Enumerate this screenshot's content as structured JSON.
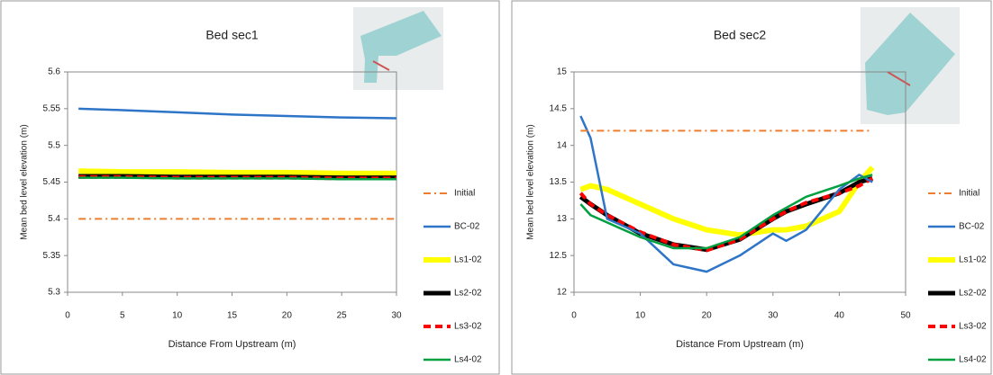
{
  "chart_data": [
    {
      "type": "line",
      "title": "Bed sec1",
      "x_label": "Distance From Upstream (m)",
      "y_label": "Mean bed level elevation (m)",
      "x": [
        1,
        5,
        10,
        15,
        20,
        25,
        30
      ],
      "xlim": [
        0,
        30
      ],
      "xticks": [
        0,
        5,
        10,
        15,
        20,
        25,
        30
      ],
      "ylim": [
        5.3,
        5.6
      ],
      "yticks": [
        5.3,
        5.35,
        5.4,
        5.45,
        5.5,
        5.55,
        5.6
      ],
      "series": [
        {
          "name": "Initial",
          "color": "#ed7d31",
          "style": "dashdot",
          "values": [
            5.4,
            5.4,
            5.4,
            5.4,
            5.4,
            5.4,
            5.4
          ]
        },
        {
          "name": "BC-02",
          "color": "#2e75c8",
          "values": [
            5.55,
            5.548,
            5.545,
            5.542,
            5.54,
            5.538,
            5.537
          ]
        },
        {
          "name": "Ls1-02",
          "color": "#ffff00",
          "values": [
            5.465,
            5.464,
            5.464,
            5.463,
            5.463,
            5.462,
            5.462
          ]
        },
        {
          "name": "Ls2-02",
          "color": "#000000",
          "values": [
            5.458,
            5.458,
            5.457,
            5.457,
            5.457,
            5.456,
            5.456
          ]
        },
        {
          "name": "Ls3-02",
          "color": "#ff0000",
          "style": "dashed",
          "values": [
            5.457,
            5.457,
            5.456,
            5.456,
            5.456,
            5.455,
            5.455
          ]
        },
        {
          "name": "Ls4-02",
          "color": "#00a040",
          "values": [
            5.456,
            5.456,
            5.455,
            5.455,
            5.455,
            5.454,
            5.454
          ]
        }
      ]
    },
    {
      "type": "line",
      "title": "Bed sec2",
      "x_label": "Distance From Upstream (m)",
      "y_label": "Mean bed level elevation (m)",
      "x": [
        1,
        2.5,
        5,
        10,
        15,
        20,
        25,
        30,
        32,
        35,
        40,
        43,
        45
      ],
      "xlim": [
        0,
        50
      ],
      "xticks": [
        0,
        10,
        20,
        30,
        40,
        50
      ],
      "ylim": [
        12,
        15
      ],
      "yticks": [
        12,
        12.5,
        13,
        13.5,
        14,
        14.5,
        15
      ],
      "series": [
        {
          "name": "Initial",
          "color": "#ed7d31",
          "style": "dashdot",
          "values": [
            14.2,
            14.2,
            14.2,
            14.2,
            14.2,
            14.2,
            14.2,
            14.2,
            14.2,
            14.2,
            14.2,
            14.2,
            14.2
          ]
        },
        {
          "name": "BC-02",
          "color": "#2e75c8",
          "values": [
            14.4,
            14.1,
            13.0,
            12.8,
            12.38,
            12.28,
            12.5,
            12.8,
            12.7,
            12.85,
            13.4,
            13.6,
            13.5
          ]
        },
        {
          "name": "Ls1-02",
          "color": "#ffff00",
          "values": [
            13.4,
            13.45,
            13.4,
            13.2,
            13.0,
            12.85,
            12.78,
            12.85,
            12.85,
            12.9,
            13.1,
            13.5,
            13.7
          ]
        },
        {
          "name": "Ls2-02",
          "color": "#000000",
          "values": [
            13.3,
            13.2,
            13.05,
            12.8,
            12.65,
            12.58,
            12.72,
            13.0,
            13.1,
            13.2,
            13.35,
            13.5,
            13.55
          ]
        },
        {
          "name": "Ls3-02",
          "color": "#ff0000",
          "style": "dashed",
          "values": [
            13.35,
            13.2,
            13.05,
            12.82,
            12.65,
            12.57,
            12.72,
            13.0,
            13.1,
            13.22,
            13.35,
            13.45,
            13.55
          ]
        },
        {
          "name": "Ls4-02",
          "color": "#00a040",
          "values": [
            13.2,
            13.05,
            12.95,
            12.75,
            12.6,
            12.6,
            12.75,
            13.05,
            13.15,
            13.3,
            13.45,
            13.55,
            13.6
          ]
        }
      ]
    }
  ]
}
